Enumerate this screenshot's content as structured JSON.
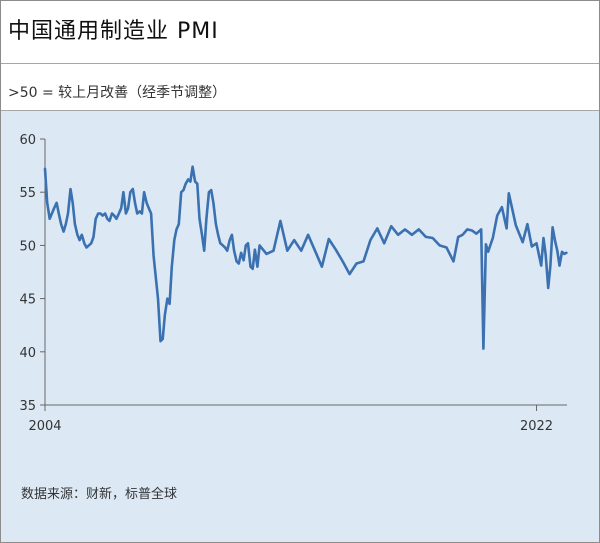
{
  "header": {
    "title": "中国通用制造业 PMI"
  },
  "subtitle": ">50 = 较上月改善（经季节调整）",
  "source": "数据来源：财新，标普全球",
  "colors": {
    "line": "#3b71b0",
    "panel": "#dce9f5",
    "axis": "#666666"
  },
  "chart_data": {
    "type": "line",
    "title": "中国通用制造业 PMI",
    "subtitle": ">50 = 较上月改善（经季节调整）",
    "ylim": [
      35,
      60
    ],
    "yticks": [
      35,
      40,
      45,
      50,
      55,
      60
    ],
    "xlim": [
      2004.25,
      2023.1
    ],
    "xticks": [
      {
        "value": 2004.25,
        "label": "2004"
      },
      {
        "value": 2022.0,
        "label": "2022"
      }
    ],
    "grid": false,
    "series": [
      {
        "x": [
          2004.25,
          2004.33,
          2004.42,
          2004.5,
          2004.58,
          2004.67,
          2004.75,
          2004.83,
          2004.92,
          2005.0,
          2005.08,
          2005.17,
          2005.25,
          2005.33,
          2005.42,
          2005.5,
          2005.58,
          2005.67,
          2005.75,
          2005.83,
          2005.92,
          2006.0,
          2006.08,
          2006.17,
          2006.25,
          2006.33,
          2006.42,
          2006.5,
          2006.58,
          2006.67,
          2006.75,
          2006.83,
          2006.92,
          2007.0,
          2007.08,
          2007.17,
          2007.25,
          2007.33,
          2007.42,
          2007.5,
          2007.58,
          2007.67,
          2007.75,
          2007.83,
          2007.92,
          2008.0,
          2008.08,
          2008.17,
          2008.25,
          2008.33,
          2008.42,
          2008.5,
          2008.58,
          2008.67,
          2008.75,
          2008.83,
          2008.92,
          2009.0,
          2009.08,
          2009.17,
          2009.25,
          2009.33,
          2009.42,
          2009.5,
          2009.58,
          2009.67,
          2009.75,
          2009.83,
          2009.92,
          2010.0,
          2010.08,
          2010.17,
          2010.25,
          2010.33,
          2010.42,
          2010.5,
          2010.58,
          2010.67,
          2010.75,
          2010.83,
          2010.92,
          2011.0,
          2011.08,
          2011.17,
          2011.25,
          2011.33,
          2011.42,
          2011.5,
          2011.58,
          2011.67,
          2011.75,
          2011.83,
          2011.92,
          2012.0,
          2012.25,
          2012.5,
          2012.75,
          2013.0,
          2013.25,
          2013.5,
          2013.75,
          2014.0,
          2014.25,
          2014.5,
          2014.75,
          2015.0,
          2015.25,
          2015.5,
          2015.75,
          2016.0,
          2016.25,
          2016.5,
          2016.75,
          2017.0,
          2017.25,
          2017.5,
          2017.75,
          2018.0,
          2018.25,
          2018.5,
          2018.75,
          2019.0,
          2019.17,
          2019.33,
          2019.5,
          2019.67,
          2019.83,
          2020.0,
          2020.08,
          2020.17,
          2020.25,
          2020.42,
          2020.58,
          2020.75,
          2020.92,
          2021.0,
          2021.25,
          2021.5,
          2021.67,
          2021.83,
          2022.0,
          2022.17,
          2022.25,
          2022.33,
          2022.42,
          2022.5,
          2022.58,
          2022.67,
          2022.75,
          2022.83,
          2022.92,
          2023.0,
          2023.08
        ],
        "values": [
          57.2,
          54.0,
          52.5,
          53.0,
          53.5,
          54.0,
          53.0,
          52.0,
          51.3,
          52.0,
          53.0,
          55.3,
          54.0,
          52.0,
          51.0,
          50.5,
          51.0,
          50.2,
          49.8,
          50.0,
          50.2,
          50.8,
          52.5,
          53.0,
          53.0,
          52.8,
          53.0,
          52.5,
          52.3,
          53.0,
          52.8,
          52.5,
          53.0,
          53.5,
          55.0,
          53.0,
          53.5,
          55.0,
          55.3,
          54.0,
          53.0,
          53.2,
          53.0,
          55.0,
          54.0,
          53.5,
          53.0,
          49.0,
          47.0,
          45.0,
          41.0,
          41.2,
          43.5,
          45.0,
          44.5,
          48.0,
          50.5,
          51.5,
          52.0,
          55.0,
          55.2,
          55.8,
          56.2,
          56.0,
          57.4,
          56.0,
          55.8,
          52.5,
          51.0,
          49.5,
          52.5,
          55.0,
          55.2,
          54.0,
          52.0,
          51.0,
          50.2,
          50.0,
          49.8,
          49.5,
          50.5,
          51.0,
          49.5,
          48.5,
          48.3,
          49.3,
          48.6,
          50.0,
          50.2,
          48.0,
          47.8,
          49.6,
          48.0,
          50.0,
          49.2,
          49.5,
          52.3,
          49.5,
          50.5,
          49.5,
          51.0,
          49.5,
          48.0,
          50.6,
          49.6,
          48.5,
          47.3,
          48.3,
          48.5,
          50.5,
          51.6,
          50.2,
          51.8,
          51.0,
          51.5,
          51.0,
          51.5,
          50.8,
          50.7,
          50.0,
          49.8,
          48.5,
          50.8,
          51.0,
          51.5,
          51.4,
          51.1,
          51.5,
          40.3,
          50.1,
          49.4,
          50.7,
          52.8,
          53.6,
          51.6,
          54.9,
          51.9,
          50.3,
          52.0,
          49.9,
          50.2,
          48.1,
          50.7,
          49.1,
          46.0,
          48.1,
          51.7,
          50.4,
          49.5,
          48.1,
          49.4,
          49.2,
          49.3
        ]
      }
    ]
  }
}
